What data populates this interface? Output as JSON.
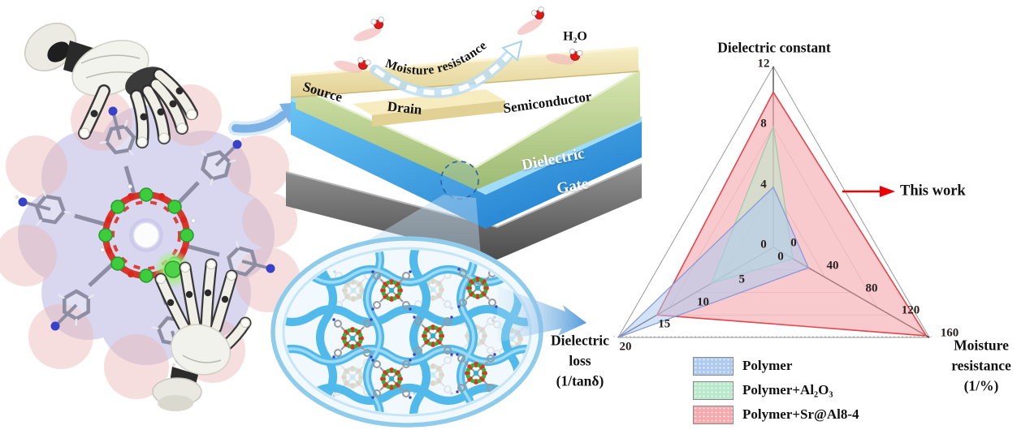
{
  "device": {
    "source": "Source",
    "drain": "Drain",
    "semiconductor": "Semiconductor",
    "dielectric": "Dielectric",
    "gate": "Gate",
    "arch_text": "Moisture resistance",
    "water": "H₂O",
    "colors": {
      "electrode": "#f2e5b0",
      "semiconductor": "#b6cd8a",
      "dielectric": "#2e9ae2",
      "gate": "#6e6e6e",
      "water_oxygen": "#e01818"
    }
  },
  "molecule_panel": {
    "colors": {
      "surface_lavender": "#b4b0e2",
      "surface_pink": "#eab8b4",
      "metal_green": "#3ccc3c",
      "oxygen_red": "#d8281c",
      "nitrogen_blue": "#3742c8",
      "carbon_gray": "#8d8da4",
      "highlight_glow": "#7fe34d",
      "robot_white": "#f2f2ec",
      "robot_dark": "#2e2e2e"
    }
  },
  "network_panel": {
    "colors": {
      "chain_blue": "#49b7ea",
      "outline_blue": "#8fccec",
      "cluster_red": "#e03020",
      "cluster_green": "#2fb53b",
      "cluster_center": "#2ab6c8"
    }
  },
  "chart_data": {
    "type": "radar",
    "axes": [
      {
        "label": "Dielectric constant",
        "max": 12,
        "ticks": [
          0,
          4,
          8,
          12
        ]
      },
      {
        "label": "Moisture resistance (1/%)",
        "max": 160,
        "ticks": [
          0,
          40,
          80,
          120,
          160
        ]
      },
      {
        "label": "Dielectric loss (1/tanδ)",
        "max": 20,
        "ticks": [
          0,
          5,
          10,
          15,
          20
        ]
      }
    ],
    "series": [
      {
        "name": "Polymer",
        "values": [
          4,
          36,
          20
        ],
        "fill": "#aecaf0",
        "edge": "#8496d6"
      },
      {
        "name": "Polymer+Al₂O₃",
        "values": [
          8,
          20,
          8
        ],
        "fill": "#b9e9ca",
        "edge": "#9fc9ac"
      },
      {
        "name": "Polymer+Sr@Al8-4",
        "values": [
          10.3,
          157,
          15
        ],
        "fill": "#f6aaae",
        "edge": "#e4454b"
      }
    ],
    "annotation": "This work",
    "annotation_color": "#ee0000",
    "legend_position": "bottom-center",
    "grid": true
  },
  "radar_text": {
    "axis_right_display": "Moisture\nresistance\n(1/%)",
    "axis_left_display": "Dielectric\nloss\n(1/tanδ)"
  }
}
